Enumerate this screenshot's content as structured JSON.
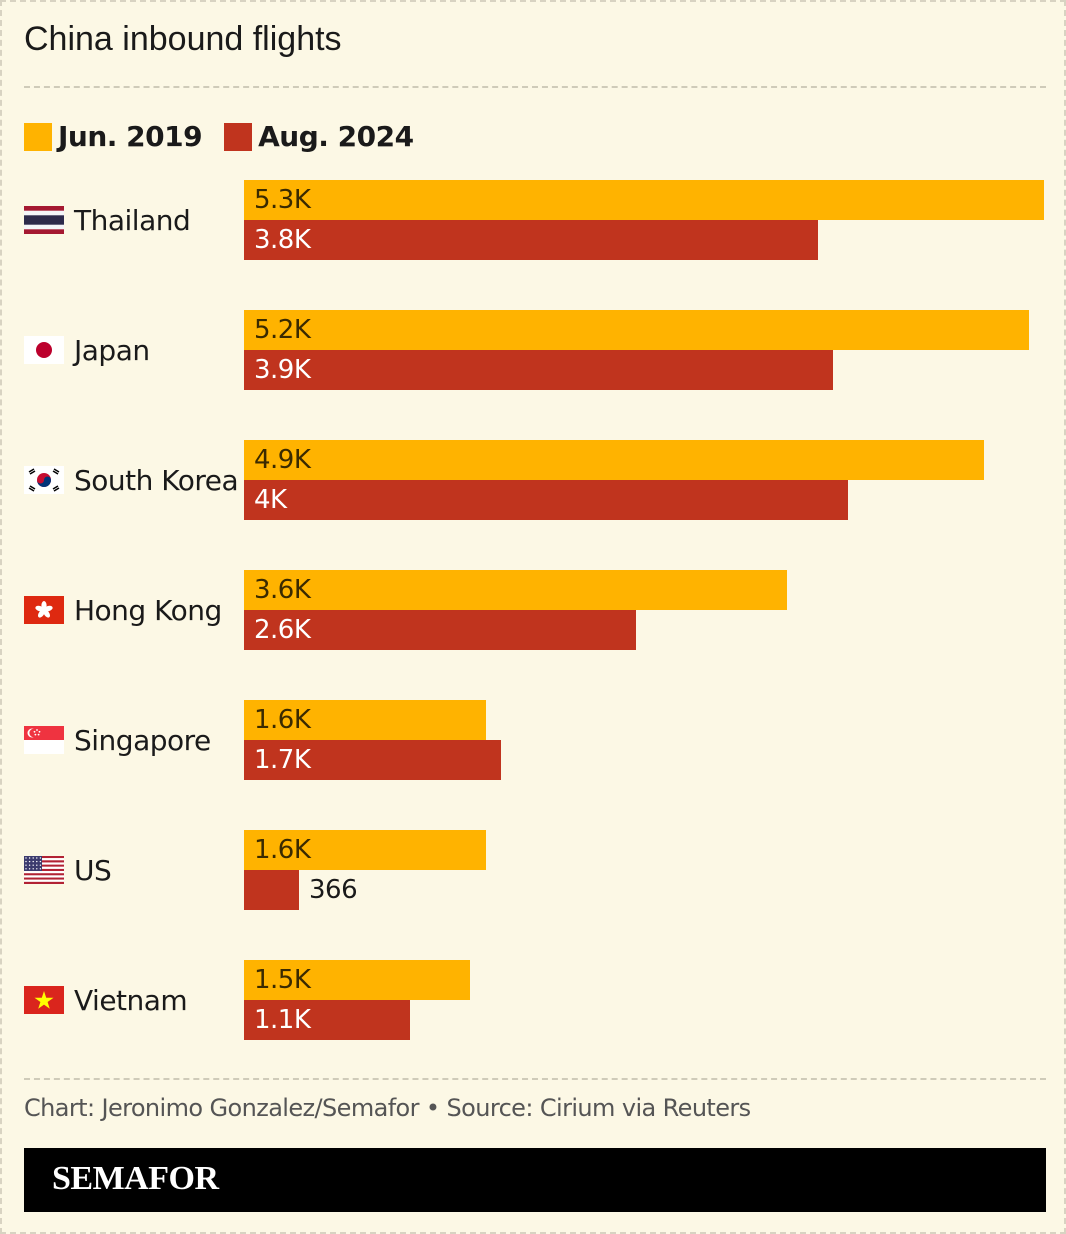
{
  "title": "China inbound flights",
  "credit": "Chart: Jeronimo Gonzalez/Semafor • Source: Cirium via Reuters",
  "footer": {
    "logo": "SEMAFOR"
  },
  "colors": {
    "background": "#fcf8e5",
    "series_2019": "#ffb300",
    "series_2024": "#c0341e"
  },
  "chart_data": {
    "type": "bar",
    "orientation": "horizontal",
    "title": "China inbound flights",
    "categories": [
      "Thailand",
      "Japan",
      "South Korea",
      "Hong Kong",
      "Singapore",
      "US",
      "Vietnam"
    ],
    "flags": [
      "thailand-flag-icon",
      "japan-flag-icon",
      "south-korea-flag-icon",
      "hong-kong-flag-icon",
      "singapore-flag-icon",
      "us-flag-icon",
      "vietnam-flag-icon"
    ],
    "series": [
      {
        "name": "Jun. 2019",
        "color": "#ffb300",
        "values": [
          5300,
          5200,
          4900,
          3600,
          1600,
          1600,
          1500
        ],
        "labels": [
          "5.3K",
          "5.2K",
          "4.9K",
          "3.6K",
          "1.6K",
          "1.6K",
          "1.5K"
        ]
      },
      {
        "name": "Aug. 2024",
        "color": "#c0341e",
        "values": [
          3800,
          3900,
          4000,
          2600,
          1700,
          366,
          1100
        ],
        "labels": [
          "3.8K",
          "3.9K",
          "4K",
          "2.6K",
          "1.7K",
          "366",
          "1.1K"
        ]
      }
    ],
    "legend": "top-left",
    "grid": false
  }
}
